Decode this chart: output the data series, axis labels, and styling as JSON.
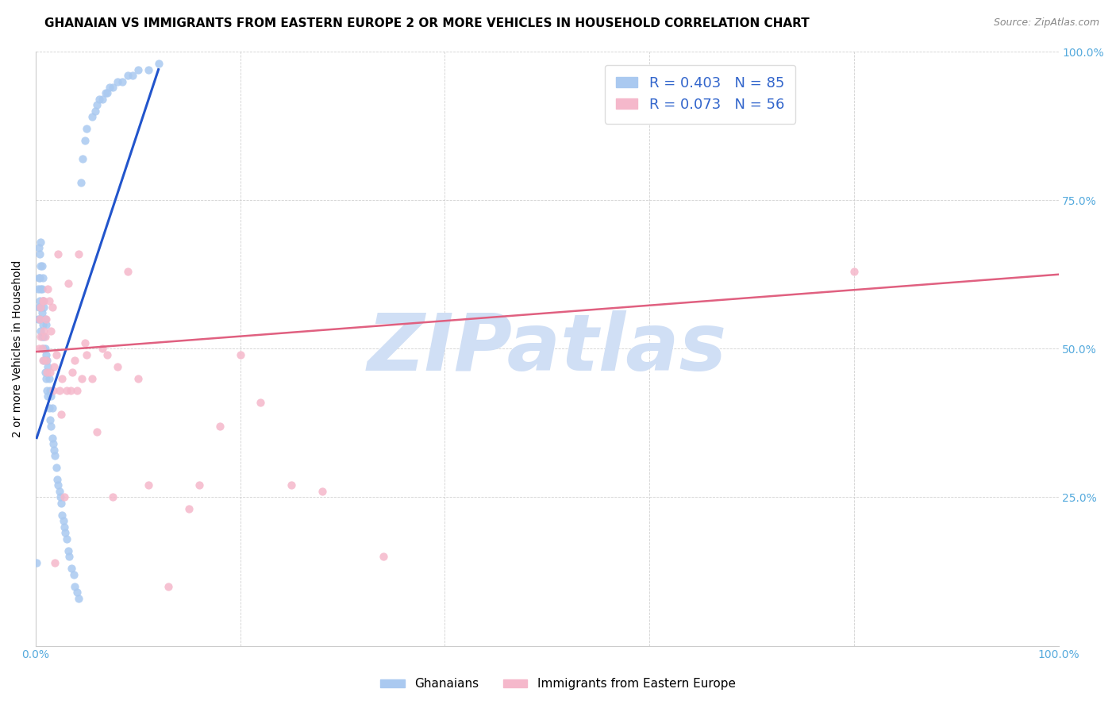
{
  "title": "GHANAIAN VS IMMIGRANTS FROM EASTERN EUROPE 2 OR MORE VEHICLES IN HOUSEHOLD CORRELATION CHART",
  "source": "Source: ZipAtlas.com",
  "ylabel": "2 or more Vehicles in Household",
  "xlim": [
    0,
    1
  ],
  "ylim": [
    0,
    1
  ],
  "legend_color1": "#aac9f0",
  "legend_color2": "#f5b8cb",
  "scatter_color1": "#aac9f0",
  "scatter_color2": "#f5b8cb",
  "scatter_alpha": 0.85,
  "scatter_size": 55,
  "line_color1": "#2255cc",
  "line_color2": "#e06080",
  "watermark_color": "#d0dff5",
  "watermark_fontsize": 72,
  "R1": 0.403,
  "N1": 85,
  "R2": 0.073,
  "N2": 56,
  "title_fontsize": 11,
  "axis_label_fontsize": 10,
  "tick_fontsize": 10,
  "source_fontsize": 9,
  "legend_bottom_label1": "Ghanaians",
  "legend_bottom_label2": "Immigrants from Eastern Europe",
  "blue_dots_x": [
    0.001,
    0.002,
    0.002,
    0.003,
    0.003,
    0.003,
    0.004,
    0.004,
    0.004,
    0.004,
    0.005,
    0.005,
    0.005,
    0.005,
    0.005,
    0.006,
    0.006,
    0.006,
    0.006,
    0.007,
    0.007,
    0.007,
    0.007,
    0.008,
    0.008,
    0.008,
    0.009,
    0.009,
    0.009,
    0.01,
    0.01,
    0.01,
    0.011,
    0.011,
    0.012,
    0.012,
    0.013,
    0.013,
    0.014,
    0.014,
    0.015,
    0.015,
    0.016,
    0.016,
    0.017,
    0.018,
    0.019,
    0.02,
    0.021,
    0.022,
    0.023,
    0.024,
    0.025,
    0.026,
    0.027,
    0.028,
    0.029,
    0.03,
    0.032,
    0.033,
    0.035,
    0.037,
    0.038,
    0.04,
    0.042,
    0.044,
    0.046,
    0.048,
    0.05,
    0.055,
    0.058,
    0.06,
    0.062,
    0.065,
    0.068,
    0.07,
    0.072,
    0.075,
    0.08,
    0.085,
    0.09,
    0.095,
    0.1,
    0.11,
    0.12
  ],
  "blue_dots_y": [
    0.14,
    0.55,
    0.6,
    0.57,
    0.62,
    0.67,
    0.55,
    0.58,
    0.62,
    0.66,
    0.53,
    0.57,
    0.6,
    0.64,
    0.68,
    0.52,
    0.56,
    0.6,
    0.64,
    0.5,
    0.54,
    0.58,
    0.62,
    0.48,
    0.52,
    0.57,
    0.46,
    0.5,
    0.55,
    0.45,
    0.49,
    0.54,
    0.43,
    0.48,
    0.42,
    0.47,
    0.4,
    0.45,
    0.38,
    0.43,
    0.37,
    0.42,
    0.35,
    0.4,
    0.34,
    0.33,
    0.32,
    0.3,
    0.28,
    0.27,
    0.26,
    0.25,
    0.24,
    0.22,
    0.21,
    0.2,
    0.19,
    0.18,
    0.16,
    0.15,
    0.13,
    0.12,
    0.1,
    0.09,
    0.08,
    0.78,
    0.82,
    0.85,
    0.87,
    0.89,
    0.9,
    0.91,
    0.92,
    0.92,
    0.93,
    0.93,
    0.94,
    0.94,
    0.95,
    0.95,
    0.96,
    0.96,
    0.97,
    0.97,
    0.98
  ],
  "pink_dots_x": [
    0.003,
    0.004,
    0.005,
    0.005,
    0.006,
    0.007,
    0.007,
    0.008,
    0.008,
    0.009,
    0.01,
    0.01,
    0.011,
    0.012,
    0.013,
    0.014,
    0.015,
    0.016,
    0.017,
    0.018,
    0.019,
    0.02,
    0.022,
    0.023,
    0.025,
    0.026,
    0.028,
    0.03,
    0.032,
    0.034,
    0.036,
    0.038,
    0.04,
    0.042,
    0.045,
    0.048,
    0.05,
    0.055,
    0.06,
    0.065,
    0.07,
    0.075,
    0.08,
    0.09,
    0.1,
    0.11,
    0.13,
    0.15,
    0.16,
    0.18,
    0.2,
    0.22,
    0.25,
    0.28,
    0.34,
    0.8
  ],
  "pink_dots_y": [
    0.5,
    0.55,
    0.52,
    0.57,
    0.5,
    0.48,
    0.58,
    0.53,
    0.58,
    0.52,
    0.48,
    0.55,
    0.46,
    0.6,
    0.58,
    0.46,
    0.53,
    0.57,
    0.43,
    0.47,
    0.14,
    0.49,
    0.66,
    0.43,
    0.39,
    0.45,
    0.25,
    0.43,
    0.61,
    0.43,
    0.46,
    0.48,
    0.43,
    0.66,
    0.45,
    0.51,
    0.49,
    0.45,
    0.36,
    0.5,
    0.49,
    0.25,
    0.47,
    0.63,
    0.45,
    0.27,
    0.1,
    0.23,
    0.27,
    0.37,
    0.49,
    0.41,
    0.27,
    0.26,
    0.15,
    0.63
  ],
  "blue_line_x": [
    0.001,
    0.12
  ],
  "blue_line_y": [
    0.35,
    0.97
  ],
  "pink_line_x": [
    0.001,
    1.0
  ],
  "pink_line_y": [
    0.495,
    0.625
  ]
}
